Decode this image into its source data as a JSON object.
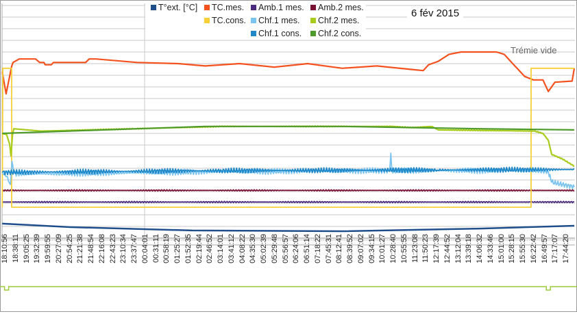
{
  "chart_data": {
    "type": "line",
    "title": "6 fév 2015",
    "annotations": [
      "Trémie vide"
    ],
    "xlabel": "",
    "ylabel": "",
    "grid": true,
    "legend_position": "top",
    "ylim": [
      0,
      20
    ],
    "x_tick_labels": [
      "18:10:56",
      "18:38:11",
      "19:05:25",
      "19:32:39",
      "19:59:55",
      "20:27:09",
      "20:54:25",
      "21:21:38",
      "21:48:54",
      "22:16:08",
      "22:43:23",
      "23:10:34",
      "23:37:47",
      "00:04:01",
      "00:31:11",
      "00:58:19",
      "01:25:27",
      "01:52:35",
      "02:19:44",
      "02:46:52",
      "03:14:01",
      "03:41:12",
      "04:08:22",
      "04:35:30",
      "05:02:39",
      "05:29:48",
      "05:56:57",
      "06:24:06",
      "06:51:14",
      "07:18:22",
      "07:45:31",
      "08:12:41",
      "08:39:52",
      "09:07:02",
      "09:34:15",
      "10:01:27",
      "10:28:40",
      "10:55:55",
      "11:23:08",
      "11:50:23",
      "12:17:39",
      "12:44:52",
      "13:12:04",
      "13:39:18",
      "14:06:32",
      "14:33:46",
      "15:01:00",
      "15:28:15",
      "15:55:30",
      "16:22:42",
      "16:49:57",
      "17:17:07",
      "17:44:20"
    ],
    "series": [
      {
        "name": "T°ext. [°C]",
        "color": "#1f4e8c",
        "noise": 0,
        "points": [
          [
            -0.3,
            1.24
          ],
          [
            6,
            0.94
          ],
          [
            17.3,
            0.65
          ],
          [
            31.2,
            0.59
          ],
          [
            44,
            0.82
          ],
          [
            52.7,
            1.06
          ]
        ]
      },
      {
        "name": "TC.mes.",
        "color": "#f4511e",
        "noise": 0,
        "points": [
          [
            -0.3,
            14.3
          ],
          [
            0.06,
            12.4
          ],
          [
            0.57,
            14.76
          ],
          [
            0.7,
            15.1
          ],
          [
            1.08,
            15.3
          ],
          [
            1.27,
            15.4
          ],
          [
            2.79,
            15.4
          ],
          [
            3.17,
            15.1
          ],
          [
            3.56,
            15.1
          ],
          [
            3.68,
            14.9
          ],
          [
            4.25,
            14.9
          ],
          [
            4.44,
            15.1
          ],
          [
            7.43,
            15.1
          ],
          [
            7.75,
            15.4
          ],
          [
            8.38,
            15.4
          ],
          [
            12.2,
            15.1
          ],
          [
            16,
            15.0
          ],
          [
            18.5,
            14.8
          ],
          [
            21.7,
            15.0
          ],
          [
            24.9,
            14.7
          ],
          [
            28,
            15.0
          ],
          [
            31.2,
            14.6
          ],
          [
            34.4,
            14.8
          ],
          [
            37.6,
            14.5
          ],
          [
            38.7,
            14.4
          ],
          [
            39.2,
            14.9
          ],
          [
            40.1,
            15.2
          ],
          [
            41.1,
            15.8
          ],
          [
            42.2,
            16.0
          ],
          [
            45.5,
            16.0
          ],
          [
            46.2,
            15.8
          ],
          [
            47.1,
            14.9
          ],
          [
            48.1,
            13.9
          ],
          [
            48.9,
            13.6
          ],
          [
            49.8,
            13.6
          ],
          [
            50.3,
            12.6
          ],
          [
            50.9,
            13.4
          ],
          [
            52.5,
            13.5
          ],
          [
            52.7,
            14.6
          ]
        ]
      },
      {
        "name": "Amb.1 mes.",
        "color": "#4b2a80",
        "noise": 0.06,
        "points": [
          [
            -0.3,
            3.1
          ],
          [
            52.7,
            3.1
          ]
        ]
      },
      {
        "name": "Amb.2 mes.",
        "color": "#7b1035",
        "noise": 0.06,
        "points": [
          [
            -0.3,
            4.1
          ],
          [
            52.7,
            4.1
          ]
        ]
      },
      {
        "name": "TC.cons.",
        "color": "#f7d038",
        "noise": 0,
        "points": [
          [
            -0.3,
            2.65
          ],
          [
            -0.25,
            14.6
          ],
          [
            0.57,
            14.6
          ],
          [
            0.57,
            2.65
          ],
          [
            48.7,
            2.65
          ],
          [
            48.7,
            14.6
          ],
          [
            52.7,
            14.6
          ]
        ]
      },
      {
        "name": "Chf.1 mes.",
        "color": "#7cc4f0",
        "noise": 0.25,
        "points": [
          [
            -0.3,
            5.6
          ],
          [
            0.1,
            5.3
          ],
          [
            0.45,
            4.6
          ],
          [
            0.6,
            6.6
          ],
          [
            0.75,
            5.6
          ],
          [
            1.4,
            5.5
          ],
          [
            20,
            5.7
          ],
          [
            35.6,
            5.8
          ],
          [
            35.7,
            7.3
          ],
          [
            35.8,
            5.8
          ],
          [
            48.7,
            5.8
          ],
          [
            50.3,
            5.7
          ],
          [
            50.6,
            4.8
          ],
          [
            52.7,
            4.4
          ]
        ]
      },
      {
        "name": "Chf.2 mes.",
        "color": "#a8cc1c",
        "noise": 0.04,
        "points": [
          [
            -0.3,
            9.0
          ],
          [
            0.1,
            8.9
          ],
          [
            0.38,
            8.1
          ],
          [
            0.51,
            7.06
          ],
          [
            0.64,
            8.8
          ],
          [
            0.76,
            9.4
          ],
          [
            3.3,
            9.2
          ],
          [
            12,
            9.4
          ],
          [
            20,
            9.6
          ],
          [
            35.7,
            9.6
          ],
          [
            37.6,
            9.5
          ],
          [
            39.5,
            9.6
          ],
          [
            40.1,
            9.3
          ],
          [
            49,
            9.2
          ],
          [
            49.8,
            9.0
          ],
          [
            50.3,
            8.4
          ],
          [
            50.6,
            7.2
          ],
          [
            51.6,
            6.8
          ],
          [
            52.7,
            6.18
          ]
        ]
      },
      {
        "name": "Chf.1 cons.",
        "color": "#1e88c8",
        "noise": 0.22,
        "points": [
          [
            -0.3,
            5.65
          ],
          [
            20,
            5.8
          ],
          [
            40,
            5.85
          ],
          [
            52.7,
            5.9
          ]
        ]
      },
      {
        "name": "Chf.2 cons.",
        "color": "#4e9a2a",
        "noise": 0,
        "points": [
          [
            -0.3,
            9.0
          ],
          [
            12.2,
            9.4
          ],
          [
            18.5,
            9.6
          ],
          [
            31.2,
            9.6
          ],
          [
            44,
            9.4
          ],
          [
            52.7,
            9.3
          ]
        ]
      }
    ],
    "bottom_indicator": {
      "color": "#9ccc3c",
      "notches": [
        0.1,
        50.3
      ]
    }
  }
}
